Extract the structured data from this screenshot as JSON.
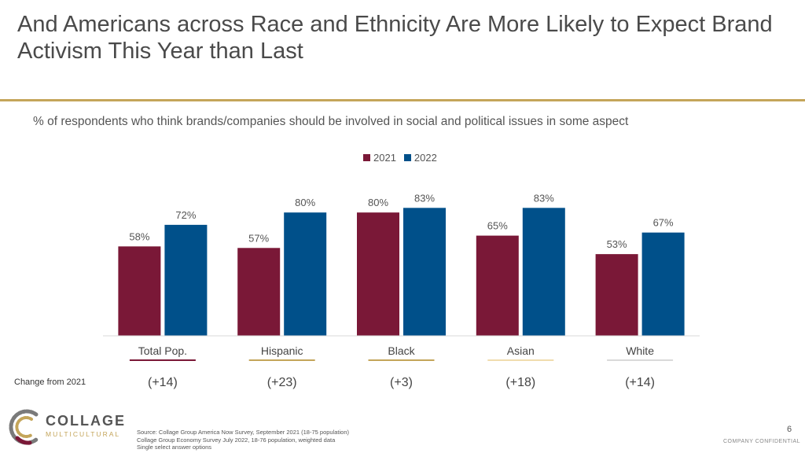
{
  "title": "And Americans across Race and Ethnicity Are More Likely to Expect Brand Activism This Year than Last",
  "subtitle": "% of respondents who think brands/companies should be involved in social and political issues in some aspect",
  "colors": {
    "series2021": "#7a1837",
    "series2022": "#00508a",
    "rule": "#c4a55a"
  },
  "chart_data": {
    "type": "bar",
    "categories": [
      "Total Pop.",
      "Hispanic",
      "Black",
      "Asian",
      "White"
    ],
    "category_underline_colors": [
      "#7a1837",
      "#c4a55a",
      "#c4a55a",
      "#f0dcae",
      "#d9d9d9"
    ],
    "series": [
      {
        "name": "2021",
        "values": [
          58,
          57,
          80,
          65,
          53
        ],
        "labels": [
          "58%",
          "57%",
          "80%",
          "65%",
          "53%"
        ]
      },
      {
        "name": "2022",
        "values": [
          72,
          80,
          83,
          83,
          67
        ],
        "labels": [
          "72%",
          "80%",
          "83%",
          "83%",
          "67%"
        ]
      }
    ],
    "ylim": [
      0,
      100
    ],
    "legend": "top"
  },
  "change": {
    "label": "Change from 2021",
    "values": [
      "(+14)",
      "(+23)",
      "(+3)",
      "(+18)",
      "(+14)"
    ]
  },
  "logo": {
    "line1": "COLLAGE",
    "line2": "MULTICULTURAL"
  },
  "source": [
    "Source: Collage Group America Now Survey, September 2021 (18-75 population)",
    "Collage Group Economy Survey July 2022, 18-76 population, weighted data",
    "Single select answer options"
  ],
  "page_number": "6",
  "confidential": "COMPANY CONFIDENTIAL"
}
